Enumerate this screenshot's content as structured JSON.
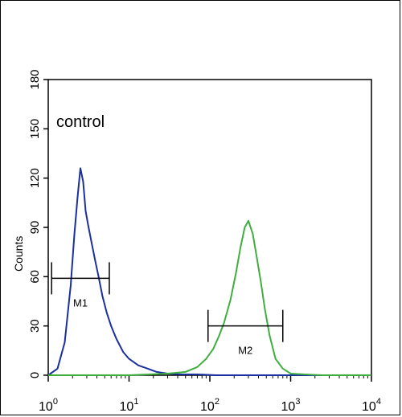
{
  "chart_data": {
    "type": "line",
    "title": "",
    "annotation": "control",
    "ylabel": "Counts",
    "xlabel": "",
    "x_scale": "log",
    "xlim": [
      1,
      10000
    ],
    "ylim": [
      0,
      180
    ],
    "y_ticks": [
      0,
      30,
      60,
      90,
      120,
      150,
      180
    ],
    "x_ticks": [
      {
        "base": "10",
        "exp": "0",
        "value": 1
      },
      {
        "base": "10",
        "exp": "1",
        "value": 10
      },
      {
        "base": "10",
        "exp": "2",
        "value": 100
      },
      {
        "base": "10",
        "exp": "3",
        "value": 1000
      },
      {
        "base": "10",
        "exp": "4",
        "value": 10000
      }
    ],
    "grid": false,
    "series": [
      {
        "color": "#1a2fa0",
        "x": [
          1.0,
          1.3,
          1.6,
          1.9,
          2.1,
          2.3,
          2.5,
          2.7,
          2.9,
          3.1,
          3.4,
          3.8,
          4.2,
          4.7,
          5.3,
          6.0,
          7.0,
          8.5,
          10,
          13,
          17,
          22,
          30,
          45,
          70,
          120,
          300,
          1000,
          10000
        ],
        "y": [
          0,
          4,
          20,
          55,
          85,
          108,
          126,
          118,
          100,
          92,
          82,
          70,
          60,
          48,
          38,
          30,
          22,
          14,
          10,
          6,
          4,
          2,
          1,
          0.5,
          0.5,
          0,
          0,
          0,
          0
        ]
      },
      {
        "color": "#3fae3f",
        "x": [
          1.0,
          10,
          30,
          50,
          70,
          90,
          110,
          130,
          150,
          180,
          210,
          240,
          270,
          300,
          340,
          380,
          430,
          480,
          550,
          650,
          800,
          1000,
          1500,
          2500,
          10000
        ],
        "y": [
          0,
          0,
          1,
          2,
          5,
          10,
          16,
          24,
          32,
          46,
          62,
          78,
          90,
          94,
          86,
          72,
          56,
          40,
          24,
          10,
          4,
          1,
          0.5,
          0,
          0
        ]
      }
    ],
    "markers": [
      {
        "label": "M1",
        "x_start": 1.1,
        "x_end": 5.7,
        "y": 59
      },
      {
        "label": "M2",
        "x_start": 95,
        "x_end": 800,
        "y": 30
      }
    ]
  }
}
